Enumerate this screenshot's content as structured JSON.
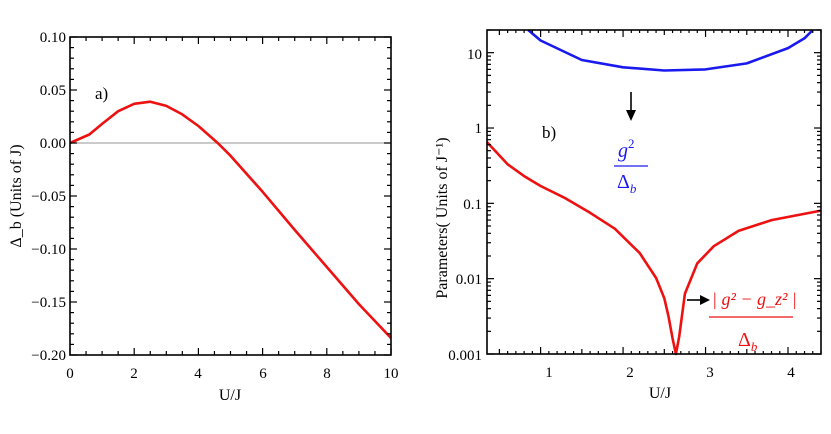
{
  "chart_data": [
    {
      "type": "line",
      "panel_label": "a)",
      "xlabel": "U/J",
      "ylabel": "Δ_b (Units of J)",
      "xlim": [
        0,
        10
      ],
      "ylim": [
        -0.2,
        0.1
      ],
      "x_ticks": [
        "0",
        "2",
        "4",
        "6",
        "8",
        "10"
      ],
      "y_ticks": [
        "0.10",
        "0.05",
        "0.00",
        "−0.05",
        "−0.10",
        "−0.15",
        "−0.20"
      ],
      "grid": false,
      "reference_line": {
        "y": 0,
        "color": "#aaaaaa"
      },
      "series": [
        {
          "color": "#ee1111",
          "x": [
            0,
            0.6,
            1.0,
            1.5,
            2.0,
            2.5,
            3.0,
            3.5,
            4.0,
            4.6,
            5.0,
            6.0,
            7.0,
            8.0,
            9.0,
            10.0
          ],
          "y": [
            0,
            0.008,
            0.018,
            0.03,
            0.037,
            0.039,
            0.035,
            0.027,
            0.016,
            0.0,
            -0.012,
            -0.046,
            -0.082,
            -0.117,
            -0.152,
            -0.184
          ]
        }
      ]
    },
    {
      "type": "line",
      "panel_label": "b)",
      "xlabel": "U/J",
      "ylabel": "Parameters( Units of J⁻¹)",
      "y_scale": "log",
      "xlim": [
        0.35,
        4.4
      ],
      "ylim": [
        0.001,
        20
      ],
      "x_ticks": [
        "1",
        "2",
        "3",
        "4"
      ],
      "y_ticks": [
        "10",
        "1",
        "0.1",
        "0.01",
        "0.001"
      ],
      "grid": false,
      "series": [
        {
          "color": "#1a1aee",
          "x": [
            0.85,
            1.0,
            1.5,
            2.0,
            2.5,
            3.0,
            3.5,
            4.0,
            4.2,
            4.3
          ],
          "y": [
            20,
            14.5,
            8.0,
            6.4,
            5.8,
            6.0,
            7.2,
            11.5,
            15.5,
            20
          ]
        },
        {
          "color": "#ee1111",
          "x": [
            0.35,
            0.6,
            0.8,
            1.0,
            1.3,
            1.6,
            1.9,
            2.2,
            2.4,
            2.5,
            2.55,
            2.6,
            2.64,
            2.68,
            2.75,
            2.9,
            3.1,
            3.4,
            3.8,
            4.4
          ],
          "y": [
            0.65,
            0.33,
            0.23,
            0.17,
            0.117,
            0.075,
            0.046,
            0.022,
            0.0102,
            0.0055,
            0.0032,
            0.0016,
            0.001,
            0.0017,
            0.0063,
            0.016,
            0.027,
            0.043,
            0.06,
            0.08
          ]
        }
      ],
      "annotations": [
        {
          "text_num_base": "g",
          "text_num_sup": "2",
          "text_den_base": "Δ",
          "text_den_sub": "b",
          "color": "#1a1aee"
        },
        {
          "text_num": "| g² − g_z² |",
          "text_den_base": "Δ",
          "text_den_sub": "b",
          "color": "#ee1111"
        }
      ]
    }
  ]
}
